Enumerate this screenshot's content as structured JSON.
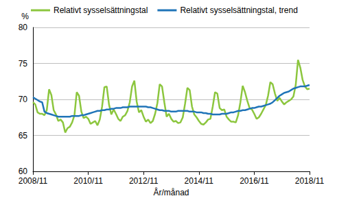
{
  "chart_data": {
    "type": "line",
    "x_label": "År/månad",
    "y_label": "%",
    "categories": [
      "2008/11",
      null,
      null,
      null,
      null,
      null,
      null,
      null,
      null,
      null,
      null,
      null,
      null,
      null,
      null,
      null,
      null,
      null,
      null,
      null,
      null,
      null,
      null,
      null,
      "2010/11",
      null,
      null,
      null,
      null,
      null,
      null,
      null,
      null,
      null,
      null,
      null,
      null,
      null,
      null,
      null,
      null,
      null,
      null,
      null,
      null,
      null,
      null,
      null,
      "2012/11",
      null,
      null,
      null,
      null,
      null,
      null,
      null,
      null,
      null,
      null,
      null,
      null,
      null,
      null,
      null,
      null,
      null,
      null,
      null,
      null,
      null,
      null,
      null,
      "2014/11",
      null,
      null,
      null,
      null,
      null,
      null,
      null,
      null,
      null,
      null,
      null,
      null,
      null,
      null,
      null,
      null,
      null,
      null,
      null,
      null,
      null,
      null,
      null,
      "2016/11",
      null,
      null,
      null,
      null,
      null,
      null,
      null,
      null,
      null,
      null,
      null,
      null,
      null,
      null,
      null,
      null,
      null,
      null,
      null,
      null,
      null,
      null,
      null,
      "2018/11"
    ],
    "series": [
      {
        "name": "Relativt sysselsättningstal",
        "color": "#8cc63e",
        "values": [
          69.6,
          69.3,
          68.2,
          68.0,
          68.0,
          67.8,
          68.5,
          71.4,
          70.6,
          68.5,
          67.9,
          67.0,
          67.2,
          66.8,
          65.4,
          66.0,
          66.2,
          66.8,
          67.8,
          71.0,
          70.5,
          68.3,
          67.4,
          67.6,
          67.3,
          66.6,
          66.8,
          67.0,
          66.4,
          67.2,
          69.0,
          71.7,
          71.8,
          69.3,
          67.9,
          68.6,
          68.0,
          67.3,
          67.0,
          67.6,
          67.8,
          68.4,
          69.6,
          71.8,
          72.6,
          69.7,
          68.2,
          68.5,
          67.6,
          66.9,
          67.2,
          66.7,
          67.0,
          68.0,
          69.5,
          72.1,
          71.8,
          69.6,
          67.6,
          68.0,
          67.3,
          66.9,
          67.0,
          66.7,
          66.8,
          67.5,
          69.4,
          71.6,
          71.3,
          69.0,
          67.9,
          67.5,
          67.0,
          66.6,
          66.5,
          66.8,
          67.2,
          67.3,
          69.0,
          71.0,
          70.8,
          68.8,
          68.5,
          68.6,
          67.6,
          67.2,
          66.9,
          66.9,
          66.8,
          67.8,
          69.6,
          71.9,
          71.0,
          69.8,
          68.8,
          68.6,
          68.0,
          67.3,
          67.5,
          68.0,
          68.6,
          69.2,
          70.5,
          72.4,
          72.1,
          70.8,
          69.8,
          70.2,
          69.7,
          69.3,
          69.6,
          69.8,
          70.0,
          70.4,
          72.0,
          75.5,
          74.4,
          72.7,
          71.8,
          71.4,
          71.5
        ]
      },
      {
        "name": "Relativt sysselsättningstal, trend",
        "color": "#1f74b8",
        "values": [
          70.3,
          70.1,
          69.9,
          69.7,
          69.6,
          68.3,
          68.1,
          68.0,
          67.9,
          67.8,
          67.7,
          67.6,
          67.6,
          67.6,
          67.6,
          67.6,
          67.6,
          67.7,
          67.7,
          67.7,
          67.7,
          67.8,
          67.8,
          67.9,
          68.0,
          68.1,
          68.2,
          68.3,
          68.4,
          68.4,
          68.5,
          68.5,
          68.6,
          68.6,
          68.7,
          68.7,
          68.8,
          68.8,
          68.8,
          68.9,
          68.9,
          68.9,
          69.0,
          69.0,
          69.0,
          69.0,
          69.0,
          69.0,
          69.0,
          69.0,
          68.9,
          68.9,
          68.8,
          68.7,
          68.6,
          68.5,
          68.5,
          68.4,
          68.4,
          68.4,
          68.3,
          68.3,
          68.3,
          68.4,
          68.4,
          68.4,
          68.4,
          68.4,
          68.3,
          68.3,
          68.3,
          68.2,
          68.2,
          68.2,
          68.1,
          68.1,
          68.0,
          68.0,
          67.9,
          67.9,
          67.9,
          67.9,
          68.0,
          68.0,
          68.0,
          68.1,
          68.2,
          68.2,
          68.3,
          68.4,
          68.4,
          68.5,
          68.5,
          68.6,
          68.7,
          68.8,
          68.8,
          68.9,
          69.0,
          69.0,
          69.1,
          69.2,
          69.3,
          69.4,
          69.6,
          69.9,
          70.2,
          70.5,
          70.7,
          70.9,
          71.0,
          71.1,
          71.3,
          71.5,
          71.6,
          71.7,
          71.8,
          71.8,
          71.8,
          71.9,
          72.0
        ]
      }
    ],
    "ylim": [
      60,
      80
    ],
    "yticks": [
      60,
      65,
      70,
      75,
      80
    ],
    "grid": true,
    "legend": "top"
  }
}
